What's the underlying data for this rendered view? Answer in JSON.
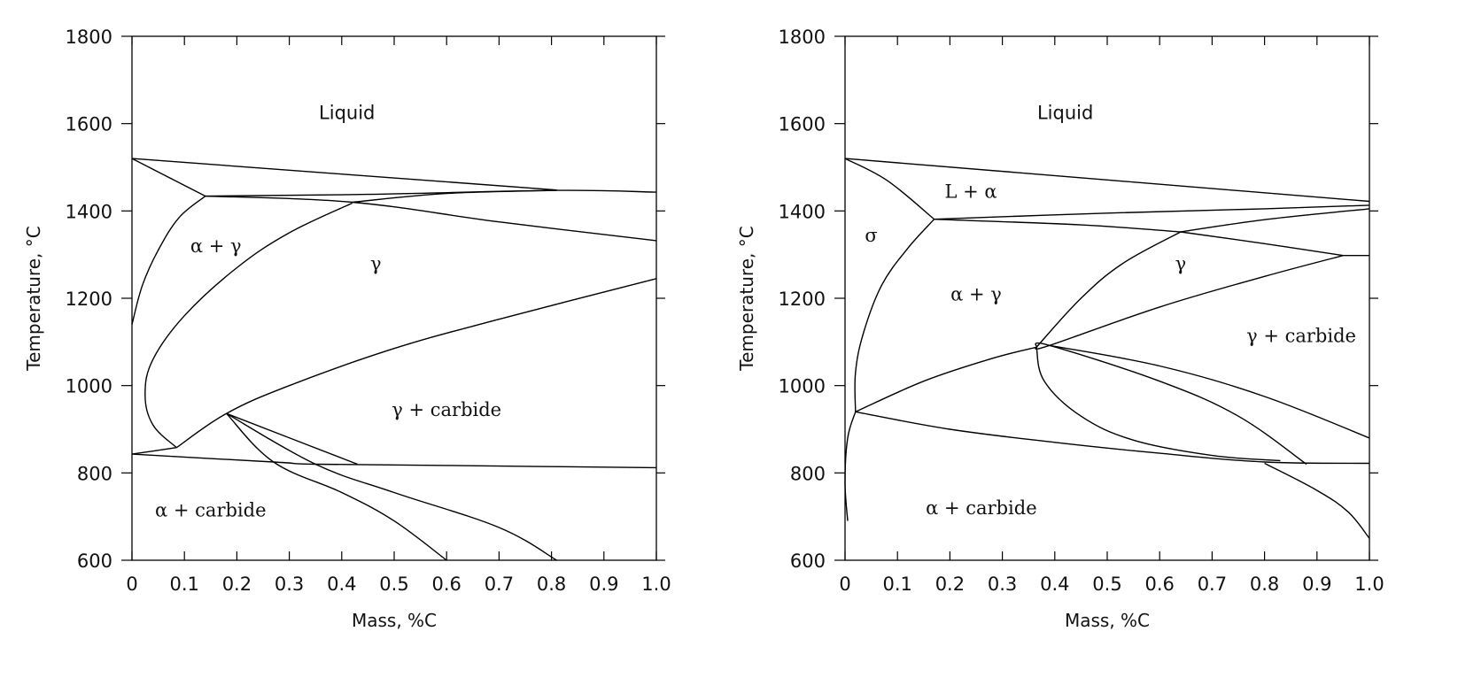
{
  "chart_data": [
    {
      "type": "line",
      "xlabel": "Mass, %C",
      "ylabel": "Temperature, °C",
      "xlim": [
        0,
        1.0
      ],
      "ylim": [
        600,
        1800
      ],
      "x_ticks": [
        "0",
        "0.1",
        "0.2",
        "0.3",
        "0.4",
        "0.5",
        "0.6",
        "0.7",
        "0.8",
        "0.9",
        "1.0"
      ],
      "y_ticks": [
        "600",
        "800",
        "1000",
        "1200",
        "1400",
        "1600",
        "1800"
      ],
      "grid": false,
      "region_labels": [
        {
          "text": "Liquid",
          "x": 0.41,
          "y": 1610,
          "font": "sans"
        },
        {
          "text": "α + γ",
          "x": 0.16,
          "y": 1305,
          "font": "serif"
        },
        {
          "text": "γ",
          "x": 0.465,
          "y": 1265,
          "font": "serif"
        },
        {
          "text": "γ + carbide",
          "x": 0.6,
          "y": 930,
          "font": "serif"
        },
        {
          "text": "α + carbide",
          "x": 0.15,
          "y": 700,
          "font": "serif"
        }
      ],
      "series": [
        {
          "values": [
            [
              0,
              1520
            ],
            [
              0.81,
              1448
            ]
          ]
        },
        {
          "values": [
            [
              0,
              1520
            ],
            [
              0.14,
              1434
            ]
          ]
        },
        {
          "values": [
            [
              0.14,
              1434
            ],
            [
              0.45,
              1438
            ],
            [
              0.81,
              1447
            ],
            [
              1.0,
              1443
            ]
          ]
        },
        {
          "values": [
            [
              0.14,
              1434
            ],
            [
              0.42,
              1420
            ],
            [
              0.7,
              1375
            ],
            [
              1.0,
              1332
            ]
          ]
        },
        {
          "values": [
            [
              0.42,
              1420
            ],
            [
              0.6,
              1440
            ],
            [
              0.81,
              1447
            ]
          ]
        },
        {
          "values": [
            [
              0.14,
              1434
            ],
            [
              0.09,
              1385
            ],
            [
              0.05,
              1310
            ],
            [
              0.02,
              1230
            ],
            [
              0,
              1140
            ]
          ]
        },
        {
          "values": [
            [
              0.42,
              1418
            ],
            [
              0.3,
              1350
            ],
            [
              0.2,
              1270
            ],
            [
              0.1,
              1160
            ],
            [
              0.04,
              1060
            ],
            [
              0.025,
              980
            ],
            [
              0.04,
              910
            ],
            [
              0.085,
              858
            ]
          ]
        },
        {
          "values": [
            [
              0.085,
              858
            ],
            [
              0.18,
              936
            ],
            [
              0.3,
              1000
            ],
            [
              0.5,
              1085
            ],
            [
              0.7,
              1152
            ],
            [
              1.0,
              1245
            ]
          ]
        },
        {
          "values": [
            [
              0,
              843
            ],
            [
              0.085,
              858
            ]
          ]
        },
        {
          "values": [
            [
              0,
              843
            ],
            [
              0.27,
              825
            ],
            [
              0.35,
              820
            ],
            [
              0.6,
              817
            ],
            [
              1.0,
              812
            ]
          ]
        },
        {
          "values": [
            [
              0.18,
              936
            ],
            [
              0.43,
              820
            ]
          ]
        },
        {
          "values": [
            [
              0.18,
              936
            ],
            [
              0.35,
              820
            ],
            [
              0.5,
              755
            ],
            [
              0.7,
              675
            ],
            [
              0.81,
              600
            ]
          ]
        },
        {
          "values": [
            [
              0.18,
              936
            ],
            [
              0.27,
              825
            ],
            [
              0.4,
              755
            ],
            [
              0.5,
              690
            ],
            [
              0.6,
              600
            ]
          ]
        }
      ]
    },
    {
      "type": "line",
      "xlabel": "Mass, %C",
      "ylabel": "Temperature, °C",
      "xlim": [
        0,
        1.0
      ],
      "ylim": [
        600,
        1800
      ],
      "x_ticks": [
        "0",
        "0.1",
        "0.2",
        "0.3",
        "0.4",
        "0.5",
        "0.6",
        "0.7",
        "0.8",
        "0.9",
        "1.0"
      ],
      "y_ticks": [
        "600",
        "800",
        "1000",
        "1200",
        "1400",
        "1600",
        "1800"
      ],
      "grid": false,
      "region_labels": [
        {
          "text": "Liquid",
          "x": 0.42,
          "y": 1610,
          "font": "sans"
        },
        {
          "text": "L + α",
          "x": 0.24,
          "y": 1430,
          "font": "serif"
        },
        {
          "text": "σ",
          "x": 0.05,
          "y": 1330,
          "font": "serif"
        },
        {
          "text": "α + γ",
          "x": 0.25,
          "y": 1195,
          "font": "serif"
        },
        {
          "text": "γ",
          "x": 0.64,
          "y": 1265,
          "font": "serif"
        },
        {
          "text": "γ + carbide",
          "x": 0.87,
          "y": 1100,
          "font": "serif"
        },
        {
          "text": "α + carbide",
          "x": 0.26,
          "y": 705,
          "font": "serif"
        }
      ],
      "series": [
        {
          "values": [
            [
              0,
              1520
            ],
            [
              1.0,
              1422
            ]
          ]
        },
        {
          "values": [
            [
              0,
              1520
            ],
            [
              0.08,
              1470
            ],
            [
              0.17,
              1381
            ]
          ]
        },
        {
          "values": [
            [
              0.17,
              1381
            ],
            [
              0.5,
              1395
            ],
            [
              0.8,
              1405
            ],
            [
              1.0,
              1413
            ]
          ]
        },
        {
          "values": [
            [
              0.17,
              1381
            ],
            [
              0.45,
              1368
            ],
            [
              0.64,
              1352
            ]
          ]
        },
        {
          "values": [
            [
              0.64,
              1352
            ],
            [
              0.8,
              1380
            ],
            [
              1.0,
              1405
            ]
          ]
        },
        {
          "values": [
            [
              0.64,
              1352
            ],
            [
              0.8,
              1325
            ],
            [
              0.95,
              1298
            ]
          ]
        },
        {
          "values": [
            [
              0.95,
              1298
            ],
            [
              1.0,
              1298
            ]
          ]
        },
        {
          "values": [
            [
              0.17,
              1381
            ],
            [
              0.12,
              1315
            ],
            [
              0.07,
              1230
            ],
            [
              0.035,
              1120
            ],
            [
              0.02,
              1030
            ],
            [
              0.02,
              940
            ]
          ]
        },
        {
          "values": [
            [
              0.02,
              940
            ],
            [
              0.15,
              1010
            ],
            [
              0.28,
              1062
            ],
            [
              0.365,
              1088
            ]
          ]
        },
        {
          "values": [
            [
              0.365,
              1088
            ],
            [
              0.45,
              1200
            ],
            [
              0.53,
              1280
            ],
            [
              0.64,
              1352
            ]
          ]
        },
        {
          "values": [
            [
              0.365,
              1088
            ],
            [
              0.39,
              1092
            ],
            [
              0.6,
              1180
            ],
            [
              0.8,
              1250
            ],
            [
              0.95,
              1298
            ]
          ]
        },
        {
          "values": [
            [
              0.365,
              1088
            ],
            [
              0.38,
              1010
            ],
            [
              0.45,
              930
            ],
            [
              0.55,
              875
            ],
            [
              0.7,
              840
            ],
            [
              0.83,
              828
            ]
          ]
        },
        {
          "values": [
            [
              0.365,
              1088
            ],
            [
              0.39,
              1092
            ],
            [
              0.6,
              1010
            ],
            [
              0.75,
              930
            ],
            [
              0.88,
              820
            ]
          ]
        },
        {
          "values": [
            [
              0.39,
              1092
            ],
            [
              0.6,
              1045
            ],
            [
              0.8,
              975
            ],
            [
              1.0,
              880
            ]
          ]
        },
        {
          "values": [
            [
              0.02,
              940
            ],
            [
              0.2,
              900
            ],
            [
              0.4,
              870
            ],
            [
              0.6,
              845
            ],
            [
              0.8,
              825
            ],
            [
              1.0,
              822
            ]
          ]
        },
        {
          "values": [
            [
              0.02,
              940
            ],
            [
              0.005,
              880
            ],
            [
              0,
              780
            ],
            [
              0.005,
              690
            ]
          ]
        },
        {
          "values": [
            [
              0.8,
              822
            ],
            [
              0.9,
              760
            ],
            [
              0.96,
              710
            ],
            [
              1.0,
              650
            ]
          ]
        }
      ]
    }
  ]
}
